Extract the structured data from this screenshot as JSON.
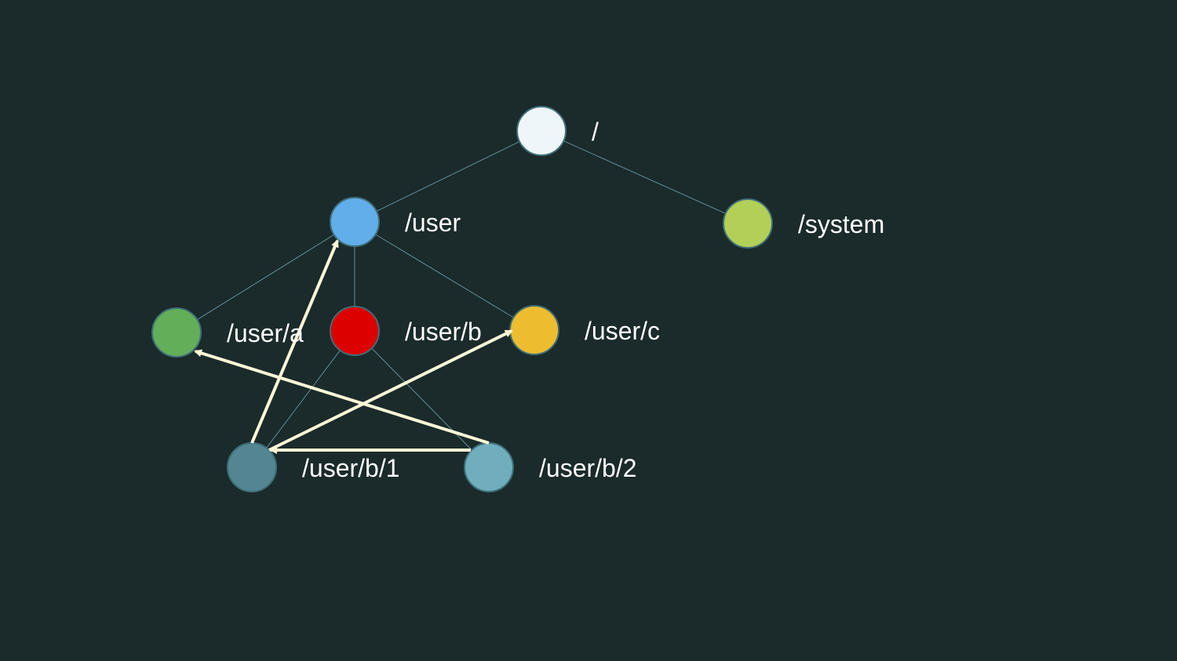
{
  "diagram": {
    "nodes": [
      {
        "id": "root",
        "label": "/",
        "color": "#eef6f9"
      },
      {
        "id": "user",
        "label": "/user",
        "color": "#62aeea"
      },
      {
        "id": "system",
        "label": "/system",
        "color": "#b2cf57"
      },
      {
        "id": "user_a",
        "label": "/user/a",
        "color": "#63ae58"
      },
      {
        "id": "user_b",
        "label": "/user/b",
        "color": "#dc0000"
      },
      {
        "id": "user_c",
        "label": "/user/c",
        "color": "#eebd2f"
      },
      {
        "id": "user_b_1",
        "label": "/user/b/1",
        "color": "#538692"
      },
      {
        "id": "user_b_2",
        "label": "/user/b/2",
        "color": "#70aebd"
      }
    ],
    "tree_edges": [
      {
        "from": "root",
        "to": "user"
      },
      {
        "from": "root",
        "to": "system"
      },
      {
        "from": "user",
        "to": "user_a"
      },
      {
        "from": "user",
        "to": "user_b"
      },
      {
        "from": "user",
        "to": "user_c"
      },
      {
        "from": "user_b",
        "to": "user_b_1"
      },
      {
        "from": "user_b",
        "to": "user_b_2"
      }
    ],
    "reference_arrows": [
      {
        "from": "user_b_1",
        "to": "user"
      },
      {
        "from": "user_b_1",
        "to": "user_c"
      },
      {
        "from": "user_b_2",
        "to": "user_a"
      },
      {
        "from": "user_b_2",
        "to": "user_b_1"
      }
    ],
    "colors": {
      "background": "#1b2a2b",
      "tree_edge": "#5f8f9a",
      "arrow": "#fbf7d6",
      "label": "#ffffff"
    }
  }
}
